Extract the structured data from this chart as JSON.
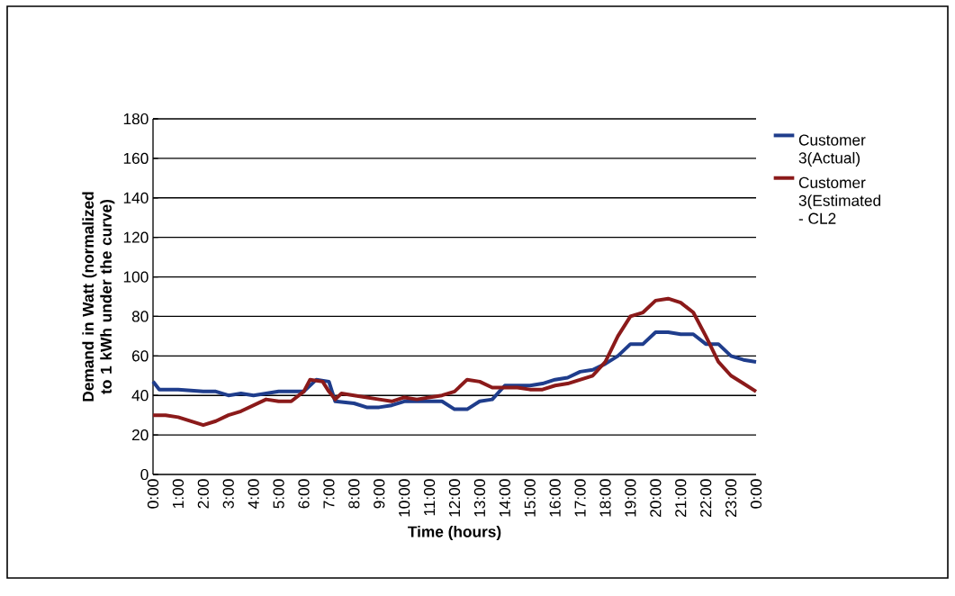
{
  "chart_data": {
    "type": "line",
    "xlabel": "Time (hours)",
    "ylabel": "Demand in Watt (normalized to 1 kWh under the curve)",
    "xlim": [
      0,
      24
    ],
    "xticks": [
      {
        "value": 0,
        "label": "0:00"
      },
      {
        "value": 1,
        "label": "1:00"
      },
      {
        "value": 2,
        "label": "2:00"
      },
      {
        "value": 3,
        "label": "3:00"
      },
      {
        "value": 4,
        "label": "4:00"
      },
      {
        "value": 5,
        "label": "5:00"
      },
      {
        "value": 6,
        "label": "6:00"
      },
      {
        "value": 7,
        "label": "7:00"
      },
      {
        "value": 8,
        "label": "8:00"
      },
      {
        "value": 9,
        "label": "9:00"
      },
      {
        "value": 10,
        "label": "10:00"
      },
      {
        "value": 11,
        "label": "11:00"
      },
      {
        "value": 12,
        "label": "12:00"
      },
      {
        "value": 13,
        "label": "13:00"
      },
      {
        "value": 14,
        "label": "14:00"
      },
      {
        "value": 15,
        "label": "15:00"
      },
      {
        "value": 16,
        "label": "16:00"
      },
      {
        "value": 17,
        "label": "17:00"
      },
      {
        "value": 18,
        "label": "18:00"
      },
      {
        "value": 19,
        "label": "19:00"
      },
      {
        "value": 20,
        "label": "20:00"
      },
      {
        "value": 21,
        "label": "21:00"
      },
      {
        "value": 22,
        "label": "22:00"
      },
      {
        "value": 23,
        "label": "23:00"
      },
      {
        "value": 24,
        "label": "0:00"
      }
    ],
    "ylim": [
      0,
      180
    ],
    "yticks": [
      0,
      20,
      40,
      60,
      80,
      100,
      120,
      140,
      160,
      180
    ],
    "grid": "y",
    "legend": "right",
    "marker": "none",
    "line_style": "solid",
    "series": [
      {
        "name": "Customer 3(Actual)",
        "color": "#1f3d8c",
        "x": [
          0,
          0.25,
          1,
          2,
          2.5,
          3,
          3.5,
          4,
          4.5,
          5,
          5.5,
          6,
          6.5,
          7,
          7.25,
          8,
          8.5,
          9,
          9.5,
          10,
          10.5,
          11,
          11.5,
          12,
          12.5,
          13,
          13.5,
          14,
          14.5,
          15,
          15.5,
          16,
          16.5,
          17,
          17.5,
          18,
          18.5,
          19,
          19.5,
          20,
          20.5,
          21,
          21.5,
          22,
          22.5,
          23,
          23.5,
          24
        ],
        "values": [
          47,
          43,
          43,
          42,
          42,
          40,
          41,
          40,
          41,
          42,
          42,
          42,
          48,
          47,
          37,
          36,
          34,
          34,
          35,
          37,
          37,
          37,
          37,
          33,
          33,
          37,
          38,
          45,
          45,
          45,
          46,
          48,
          49,
          52,
          53,
          56,
          60,
          66,
          66,
          72,
          72,
          71,
          71,
          66,
          66,
          60,
          58,
          57
        ]
      },
      {
        "name": "Customer 3(Estimated - CL2",
        "color": "#8b1a1a",
        "x": [
          0,
          0.5,
          1,
          1.5,
          2,
          2.5,
          3,
          3.5,
          4,
          4.5,
          5,
          5.5,
          6,
          6.25,
          6.75,
          7,
          7.25,
          7.5,
          8,
          8.5,
          9,
          9.5,
          10,
          10.5,
          11,
          11.5,
          12,
          12.5,
          13,
          13.5,
          14,
          14.5,
          15,
          15.5,
          16,
          16.5,
          17,
          17.5,
          18,
          18.5,
          19,
          19.5,
          20,
          20.5,
          21,
          21.5,
          22,
          22.5,
          23,
          23.5,
          24
        ],
        "values": [
          30,
          30,
          29,
          27,
          25,
          27,
          30,
          32,
          35,
          38,
          37,
          37,
          42,
          48,
          47,
          42,
          38,
          41,
          40,
          39,
          38,
          37,
          39,
          38,
          39,
          40,
          42,
          48,
          47,
          44,
          44,
          44,
          43,
          43,
          45,
          46,
          48,
          50,
          57,
          70,
          80,
          82,
          88,
          89,
          87,
          82,
          70,
          57,
          50,
          46,
          42
        ]
      }
    ]
  }
}
